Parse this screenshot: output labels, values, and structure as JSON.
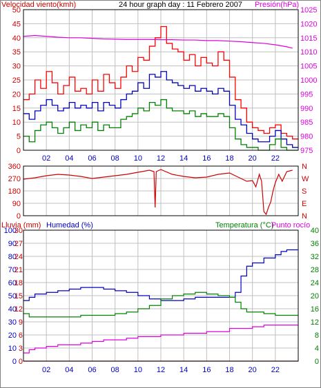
{
  "header": {
    "wind_label": "Velocidad viento(kmh)",
    "title": "24 hour graph day : 11 Febrero 2007",
    "pressure_label": "Presión(hPa)"
  },
  "lower_header": {
    "rain_label": "Lluvia (mm)",
    "humidity_label": "Humedad (%)",
    "temperature_label": "Temperatura (°C)",
    "dewpoint_label": "Punto rocío"
  },
  "colors": {
    "wind_gust": "#ff0000",
    "wind_avg": "#0000c0",
    "wind_low": "#008000",
    "pressure": "#dd00dd",
    "direction": "#cc0000",
    "rain": "#cc0000",
    "humidity": "#0000c0",
    "temperature": "#008000",
    "dewpoint": "#dd00dd",
    "grid": "#c0c0c0"
  },
  "chart_data": [
    {
      "type": "line",
      "name": "wind-pressure",
      "x_unit": "hour",
      "xlim": [
        0,
        24
      ],
      "x_ticks": [
        "02",
        "04",
        "06",
        "08",
        "10",
        "12",
        "14",
        "16",
        "18",
        "20",
        "22"
      ],
      "left_axis": {
        "label": "Velocidad viento(kmh)",
        "ylim": [
          0,
          50
        ],
        "ticks": [
          0,
          5,
          10,
          15,
          20,
          25,
          30,
          35,
          40,
          45,
          50
        ]
      },
      "right_axis": {
        "label": "Presión(hPa)",
        "ylim": [
          975,
          1025
        ],
        "ticks": [
          975,
          980,
          985,
          990,
          995,
          1000,
          1005,
          1010,
          1015,
          1020,
          1025
        ]
      },
      "grid": true,
      "series": [
        {
          "axis": "left",
          "color": "#ff0000",
          "x": [
            0,
            0.5,
            1,
            1.5,
            2,
            2.5,
            3,
            3.5,
            4,
            4.5,
            5,
            5.5,
            6,
            6.5,
            7,
            7.5,
            8,
            8.5,
            9,
            9.5,
            10,
            10.5,
            11,
            11.5,
            12,
            12.5,
            13,
            13.5,
            14,
            14.5,
            15,
            15.5,
            16,
            16.5,
            17,
            17.5,
            18,
            18.5,
            19,
            19.5,
            20,
            20.5,
            21,
            21.5,
            22,
            22.5,
            23,
            23.5
          ],
          "y": [
            18,
            20,
            25,
            22,
            28,
            24,
            20,
            23,
            26,
            21,
            22,
            20,
            25,
            21,
            27,
            24,
            22,
            26,
            30,
            28,
            33,
            32,
            37,
            40,
            44,
            38,
            36,
            35,
            32,
            34,
            30,
            33,
            31,
            30,
            35,
            32,
            26,
            18,
            15,
            10,
            8,
            7,
            6,
            8,
            9,
            6,
            5,
            4
          ]
        },
        {
          "axis": "left",
          "color": "#0000c0",
          "x": [
            0,
            0.5,
            1,
            1.5,
            2,
            2.5,
            3,
            3.5,
            4,
            4.5,
            5,
            5.5,
            6,
            6.5,
            7,
            7.5,
            8,
            8.5,
            9,
            9.5,
            10,
            10.5,
            11,
            11.5,
            12,
            12.5,
            13,
            13.5,
            14,
            14.5,
            15,
            15.5,
            16,
            16.5,
            17,
            17.5,
            18,
            18.5,
            19,
            19.5,
            20,
            20.5,
            21,
            21.5,
            22,
            22.5,
            23,
            23.5
          ],
          "y": [
            13,
            11,
            14,
            16,
            18,
            16,
            14,
            15,
            17,
            15,
            16,
            15,
            17,
            14,
            17,
            16,
            15,
            18,
            20,
            21,
            24,
            22,
            27,
            26,
            28,
            25,
            24,
            23,
            22,
            23,
            21,
            22,
            21,
            20,
            22,
            21,
            16,
            11,
            9,
            6,
            4,
            3,
            3,
            5,
            7,
            4,
            2,
            1
          ]
        },
        {
          "axis": "left",
          "color": "#008000",
          "x": [
            0,
            0.5,
            1,
            1.5,
            2,
            2.5,
            3,
            3.5,
            4,
            4.5,
            5,
            5.5,
            6,
            6.5,
            7,
            7.5,
            8,
            8.5,
            9,
            9.5,
            10,
            10.5,
            11,
            11.5,
            12,
            12.5,
            13,
            13.5,
            14,
            14.5,
            15,
            15.5,
            16,
            16.5,
            17,
            17.5,
            18,
            18.5,
            19,
            19.5,
            20,
            20.5,
            21,
            21.5,
            22,
            22.5,
            23,
            23.5
          ],
          "y": [
            5,
            3,
            7,
            9,
            10,
            8,
            6,
            8,
            10,
            7,
            9,
            8,
            10,
            7,
            9,
            8,
            8,
            11,
            12,
            13,
            15,
            14,
            17,
            16,
            18,
            15,
            14,
            14,
            13,
            14,
            12,
            13,
            12,
            12,
            13,
            12,
            8,
            4,
            2,
            1,
            1,
            0,
            0,
            2,
            4,
            1,
            0,
            0
          ]
        },
        {
          "axis": "right",
          "color": "#dd00dd",
          "x": [
            0,
            1,
            2,
            3,
            4,
            5,
            6,
            7,
            8,
            9,
            10,
            11,
            12,
            13,
            14,
            15,
            16,
            17,
            18,
            19,
            20,
            21,
            22,
            23,
            23.5
          ],
          "y": [
            1015.5,
            1015.8,
            1015.5,
            1015.2,
            1015,
            1015,
            1014.8,
            1014.6,
            1014.5,
            1014.4,
            1014.4,
            1014.4,
            1014.3,
            1014.3,
            1014.2,
            1014.2,
            1014,
            1014,
            1013.8,
            1013.6,
            1013.3,
            1013,
            1012.5,
            1011.8,
            1011.3
          ]
        }
      ]
    },
    {
      "type": "line",
      "name": "wind-direction",
      "x_unit": "hour",
      "xlim": [
        0,
        24
      ],
      "left_axis": {
        "ylim": [
          0,
          360
        ],
        "ticks": [
          0,
          90,
          180,
          270,
          360
        ]
      },
      "right_axis": {
        "ticks": [
          "N",
          "E",
          "S",
          "W",
          "N"
        ]
      },
      "grid": true,
      "series": [
        {
          "color": "#cc0000",
          "x": [
            0,
            1,
            2,
            3,
            4,
            5,
            6,
            7,
            8,
            9,
            10,
            11,
            11.4,
            11.5,
            11.6,
            12,
            13,
            14,
            15,
            16,
            17,
            18,
            18.5,
            19,
            19.5,
            20,
            20.3,
            20.6,
            20.8,
            21,
            21.2,
            21.4,
            21.6,
            21.8,
            22,
            22.3,
            22.6,
            23,
            23.5
          ],
          "y": [
            265,
            275,
            290,
            300,
            295,
            285,
            270,
            280,
            290,
            300,
            315,
            330,
            320,
            60,
            320,
            335,
            300,
            285,
            275,
            280,
            300,
            310,
            290,
            270,
            250,
            255,
            210,
            300,
            250,
            30,
            10,
            60,
            100,
            180,
            240,
            300,
            250,
            320,
            330
          ]
        }
      ]
    },
    {
      "type": "line",
      "name": "rain-humidity-temperature",
      "x_unit": "hour",
      "xlim": [
        0,
        24
      ],
      "rain_axis": {
        "label": "Lluvia (mm)",
        "ylim": [
          0,
          30
        ],
        "ticks": [
          0,
          3,
          6,
          9,
          12,
          15,
          18,
          21,
          24,
          27,
          30
        ]
      },
      "humidity_axis": {
        "label": "Humedad (%)",
        "ylim": [
          0,
          100
        ],
        "ticks": [
          0,
          10,
          20,
          30,
          40,
          50,
          60,
          70,
          80,
          90,
          100
        ]
      },
      "temperature_axis": {
        "label": "Temperatura (°C)",
        "ylim": [
          0,
          40
        ],
        "ticks": [
          0,
          4,
          8,
          12,
          16,
          20,
          24,
          28,
          32,
          36,
          40
        ]
      },
      "grid": true,
      "series": [
        {
          "axis": "rain",
          "color": "#cc0000",
          "x": [
            0,
            24
          ],
          "y": [
            0,
            0
          ]
        },
        {
          "axis": "temperature",
          "color": "#0000c0",
          "x": [
            0,
            0.5,
            1,
            2,
            3,
            4,
            5,
            6,
            7,
            8,
            9,
            10,
            11,
            12,
            13,
            14,
            15,
            16,
            17,
            18,
            18.5,
            19,
            19.5,
            20,
            21,
            22,
            22.5,
            23,
            23.5
          ],
          "y": [
            18.5,
            19.5,
            20.5,
            21,
            21.5,
            22,
            22.5,
            22.5,
            22,
            21.5,
            21,
            20,
            19,
            18.5,
            18.5,
            19,
            19.5,
            19.5,
            19.5,
            19.5,
            21,
            26,
            29,
            30,
            31.5,
            32.5,
            33.5,
            34,
            34
          ]
        },
        {
          "axis": "temperature",
          "color": "#008000",
          "x": [
            0,
            0.5,
            1,
            2,
            3,
            4,
            5,
            6,
            7,
            8,
            9,
            10,
            11,
            12,
            13,
            14,
            15,
            16,
            17,
            18,
            18.5,
            19,
            19.5,
            20,
            21,
            22,
            23,
            23.5
          ],
          "y": [
            14.5,
            13.5,
            13.5,
            13.5,
            13.5,
            13.5,
            14,
            14,
            14,
            14.5,
            15,
            16,
            17,
            19,
            20,
            20.5,
            21,
            20.5,
            20,
            19.5,
            18,
            16,
            15,
            15,
            14.5,
            14,
            14,
            14
          ]
        },
        {
          "axis": "temperature",
          "color": "#dd00dd",
          "x": [
            0,
            0.5,
            1,
            2,
            3,
            4,
            5,
            6,
            7,
            8,
            9,
            10,
            11,
            12,
            13,
            14,
            15,
            16,
            17,
            18,
            19,
            20,
            21,
            22,
            23,
            23.5
          ],
          "y": [
            2.5,
            3.5,
            4,
            4.5,
            5,
            5,
            5.5,
            6,
            6.5,
            6.5,
            7,
            7.5,
            7.5,
            8,
            8,
            8.5,
            8.5,
            9,
            9,
            10,
            10,
            10.5,
            11,
            11,
            11,
            11
          ]
        }
      ]
    }
  ]
}
